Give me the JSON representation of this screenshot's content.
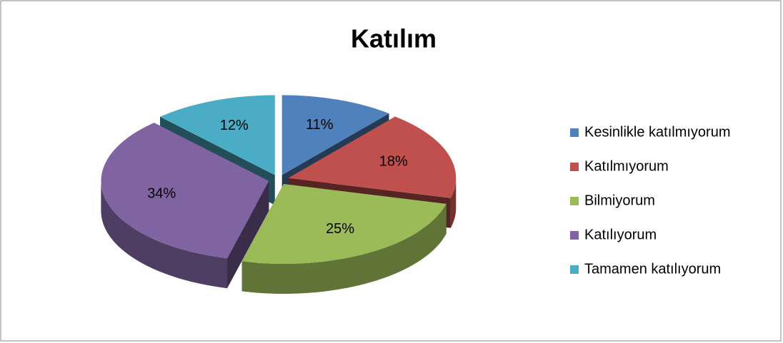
{
  "chart_data": {
    "type": "pie",
    "title": "Katılım",
    "categories": [
      "Kesinlikle katılmıyorum",
      "Katılmıyorum",
      "Bilmiyorum",
      "Katılıyorum",
      "Tamamen katılıyorum"
    ],
    "values": [
      11,
      18,
      25,
      34,
      12
    ],
    "value_labels": [
      "11%",
      "18%",
      "25%",
      "34%",
      "12%"
    ],
    "colors": [
      "#4f81bd",
      "#c0504d",
      "#9bbb59",
      "#8064a2",
      "#4bacc6"
    ],
    "legend": "right"
  }
}
